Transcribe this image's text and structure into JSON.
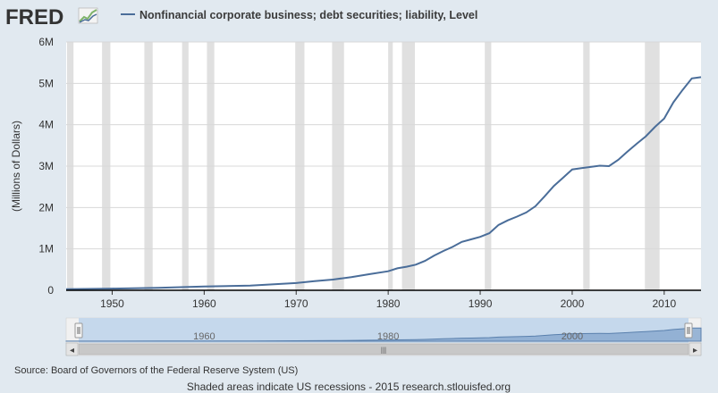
{
  "header": {
    "logo_text": "FRED",
    "legend_label": "Nonfinancial corporate business; debt securities; liability, Level",
    "colors": {
      "series": "#4a6d99",
      "recession": "#e0e0e0",
      "background": "#e1e9f0",
      "logo": "#333333"
    }
  },
  "chart_data": {
    "type": "line",
    "title": "",
    "xlabel": "",
    "ylabel": "(Millions of Dollars)",
    "xlim": [
      1945,
      2014
    ],
    "ylim": [
      0,
      6000000
    ],
    "yticks": [
      0,
      1000000,
      2000000,
      3000000,
      4000000,
      5000000,
      6000000
    ],
    "ytick_labels": [
      "0",
      "1M",
      "2M",
      "3M",
      "4M",
      "5M",
      "6M"
    ],
    "xticks": [
      1950,
      1960,
      1970,
      1980,
      1990,
      2000,
      2010
    ],
    "xtick_labels": [
      "1950",
      "1960",
      "1970",
      "1980",
      "1990",
      "2000",
      "2010"
    ],
    "grid": "horizontal",
    "series": [
      {
        "name": "Nonfinancial corporate business; debt securities; liability, Level",
        "x": [
          1945,
          1950,
          1955,
          1960,
          1965,
          1970,
          1972,
          1974,
          1976,
          1978,
          1980,
          1981,
          1982,
          1983,
          1984,
          1985,
          1986,
          1987,
          1988,
          1989,
          1990,
          1991,
          1992,
          1993,
          1994,
          1995,
          1996,
          1997,
          1998,
          1999,
          2000,
          2001,
          2002,
          2003,
          2004,
          2005,
          2006,
          2007,
          2008,
          2009,
          2010,
          2011,
          2012,
          2013,
          2014
        ],
        "y": [
          25000,
          40000,
          60000,
          90000,
          115000,
          175000,
          220000,
          260000,
          320000,
          390000,
          460000,
          530000,
          570000,
          620000,
          710000,
          840000,
          950000,
          1050000,
          1170000,
          1230000,
          1290000,
          1380000,
          1580000,
          1690000,
          1780000,
          1880000,
          2030000,
          2270000,
          2520000,
          2720000,
          2920000,
          2950000,
          2980000,
          3010000,
          3000000,
          3150000,
          3350000,
          3540000,
          3720000,
          3950000,
          4150000,
          4540000,
          4840000,
          5120000,
          5150000
        ]
      }
    ],
    "recessions": [
      [
        1945.1,
        1945.8
      ],
      [
        1948.9,
        1949.8
      ],
      [
        1953.5,
        1954.4
      ],
      [
        1957.6,
        1958.3
      ],
      [
        1960.3,
        1961.1
      ],
      [
        1969.9,
        1970.9
      ],
      [
        1973.9,
        1975.2
      ],
      [
        1980.0,
        1980.5
      ],
      [
        1981.5,
        1982.9
      ],
      [
        1990.5,
        1991.2
      ],
      [
        2001.2,
        2001.9
      ],
      [
        2007.9,
        2009.5
      ]
    ]
  },
  "navigator": {
    "labels": [
      "1960",
      "1980",
      "2000"
    ],
    "label_years": [
      1960,
      1980,
      2000
    ],
    "left_arrow": "◂",
    "right_arrow": "▸",
    "thumb_grip": "|||"
  },
  "footer": {
    "source": "Source: Board of Governors of the Federal Reserve System (US)",
    "note": "Shaded areas indicate US recessions - 2015 research.stlouisfed.org"
  }
}
